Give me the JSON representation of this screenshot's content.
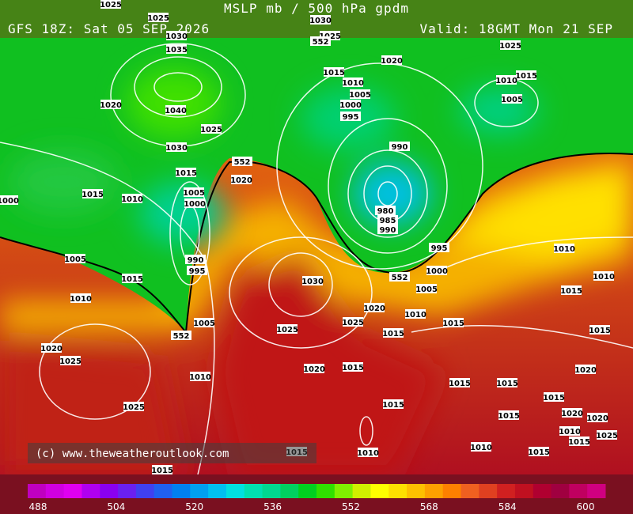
{
  "header": {
    "title": "MSLP mb / 500 hPa gpdm",
    "run": "GFS 18Z: Sat 05 SEP 2026",
    "valid": "Valid: 18GMT Mon 21 SEP"
  },
  "copyright": "(c) www.theweatheroutlook.com",
  "legend": {
    "ticks": [
      488,
      504,
      520,
      536,
      552,
      568,
      584,
      600
    ],
    "colors": [
      "#c000c0",
      "#d000e0",
      "#e000f0",
      "#b000f0",
      "#8a00f0",
      "#6a20f0",
      "#4040f0",
      "#2060f0",
      "#0080f0",
      "#00a0f0",
      "#00c0f0",
      "#00e0e0",
      "#00e0b0",
      "#00d890",
      "#00d060",
      "#00d020",
      "#30e000",
      "#80f000",
      "#d0f000",
      "#ffff00",
      "#ffe000",
      "#ffc000",
      "#ffa000",
      "#ff8000",
      "#f06020",
      "#e04020",
      "#d02020",
      "#c01020",
      "#b00030",
      "#a00040",
      "#c00060",
      "#d00080"
    ]
  },
  "isobars": [
    "1025",
    "1025",
    "1030",
    "1035",
    "1040",
    "1020",
    "1025",
    "1030",
    "1015",
    "1015",
    "1010",
    "1005",
    "1000",
    "1000",
    "1005",
    "1015",
    "1010",
    "1020",
    "1025",
    "1025",
    "1010",
    "1005",
    "552",
    "990",
    "995",
    "552",
    "1020",
    "1030",
    "1025",
    "1020",
    "1025",
    "1015",
    "1020",
    "1030",
    "1025",
    "552",
    "1020",
    "1015",
    "1010",
    "1005",
    "1000",
    "995",
    "990",
    "980",
    "985",
    "990",
    "995",
    "1000",
    "1005",
    "552",
    "1010",
    "1015",
    "1015",
    "1015",
    "1015",
    "1010",
    "1025",
    "1015",
    "1010",
    "1005",
    "1010",
    "1010",
    "1015",
    "1015",
    "1020",
    "1015",
    "1015",
    "1015",
    "1020",
    "1020",
    "1010",
    "1015",
    "1025",
    "1010",
    "1015",
    "1015",
    "1015",
    "1010"
  ]
}
